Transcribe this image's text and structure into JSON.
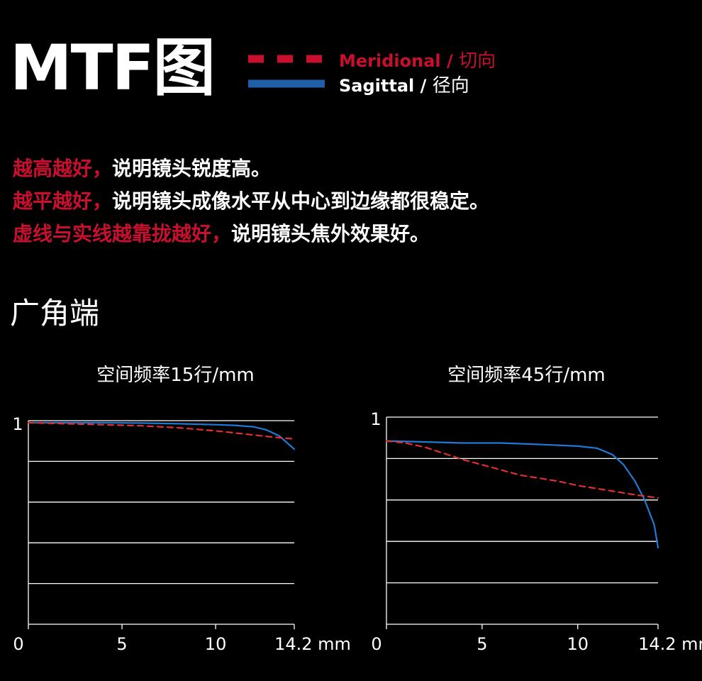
{
  "header": {
    "title": "MTF图",
    "legend": [
      {
        "style": "dashed",
        "color": "#c8102e",
        "label_en": "Meridional",
        "label_sep": " / ",
        "label_cn": "切向"
      },
      {
        "style": "solid",
        "color": "#1f5fa8",
        "label_en": "Sagittal",
        "label_sep": " / ",
        "label_cn": "径向"
      }
    ]
  },
  "notes": [
    {
      "highlight": "越高越好，",
      "text": "说明镜头锐度高。"
    },
    {
      "highlight": "越平越好，",
      "text": "说明镜头成像水平从中心到边缘都很稳定。"
    },
    {
      "highlight": "虚线与实线越靠拢越好，",
      "text": "说明镜头焦外效果好。"
    }
  ],
  "section_title": "广角端",
  "colors": {
    "meridional": "#e03030",
    "sagittal": "#1e7ad6",
    "grid": "#ffffff",
    "highlight_text": "#c8102e"
  },
  "chart_data": [
    {
      "type": "line",
      "title": "空间频率15行/mm",
      "x_tick_labels": [
        "0",
        "5",
        "10",
        "14.2 mm"
      ],
      "x_ticks": [
        0,
        5,
        10,
        14.2
      ],
      "xlim": [
        0,
        14.2
      ],
      "ylim": [
        0,
        1
      ],
      "y_tick_labels": [
        "1"
      ],
      "y_gridlines": [
        0.2,
        0.4,
        0.6,
        0.8,
        1.0
      ],
      "grid": true,
      "series": [
        {
          "name": "Meridional",
          "style": "dashed",
          "x": [
            0,
            2,
            4,
            6,
            8,
            10,
            11,
            12,
            13,
            14.2
          ],
          "y": [
            0.99,
            0.985,
            0.98,
            0.975,
            0.965,
            0.95,
            0.94,
            0.93,
            0.92,
            0.91
          ]
        },
        {
          "name": "Sagittal",
          "style": "solid",
          "x": [
            0,
            2,
            4,
            6,
            8,
            10,
            11,
            12,
            12.7,
            13.4,
            14.2
          ],
          "y": [
            0.99,
            0.99,
            0.99,
            0.988,
            0.985,
            0.98,
            0.977,
            0.97,
            0.955,
            0.925,
            0.86
          ]
        }
      ]
    },
    {
      "type": "line",
      "title": "空间频率45行/mm",
      "x_tick_labels": [
        "0",
        "5",
        "10",
        "14.2 mm"
      ],
      "x_ticks": [
        0,
        5,
        10,
        14.2
      ],
      "xlim": [
        0,
        14.2
      ],
      "ylim": [
        0,
        1
      ],
      "y_tick_labels": [
        "1"
      ],
      "y_gridlines": [
        0.2,
        0.4,
        0.6,
        0.8,
        1.0
      ],
      "grid": true,
      "series": [
        {
          "name": "Meridional",
          "style": "dashed",
          "x": [
            0,
            1,
            2,
            3,
            4,
            5,
            6,
            7,
            8,
            9,
            10,
            11,
            12,
            13,
            14.2
          ],
          "y": [
            0.885,
            0.875,
            0.855,
            0.825,
            0.795,
            0.77,
            0.745,
            0.72,
            0.705,
            0.69,
            0.67,
            0.655,
            0.64,
            0.625,
            0.61
          ]
        },
        {
          "name": "Sagittal",
          "style": "solid",
          "x": [
            0,
            2,
            4,
            6,
            8,
            10,
            11,
            11.8,
            12.4,
            13,
            13.5,
            14,
            14.2
          ],
          "y": [
            0.885,
            0.88,
            0.875,
            0.875,
            0.868,
            0.86,
            0.85,
            0.82,
            0.77,
            0.69,
            0.6,
            0.48,
            0.37
          ]
        }
      ]
    }
  ]
}
